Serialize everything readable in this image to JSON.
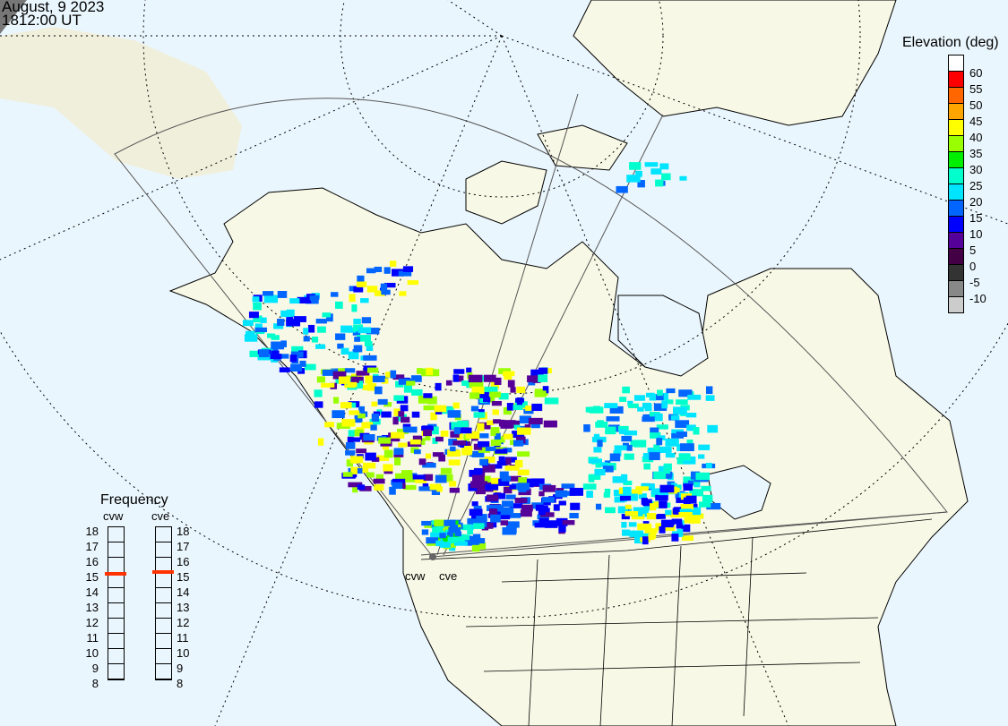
{
  "header": {
    "date": "August, 9 2023",
    "time": "1812:00 UT"
  },
  "elevation_legend": {
    "title": "Elevation (deg)",
    "labels": [
      "60",
      "55",
      "50",
      "45",
      "40",
      "35",
      "30",
      "25",
      "20",
      "15",
      "10",
      "5",
      "0",
      "-5",
      "-10"
    ],
    "colors": [
      "#ffffff",
      "#ff0000",
      "#ff6600",
      "#ffa500",
      "#ffff00",
      "#99ff00",
      "#00ee00",
      "#00ffcc",
      "#00e5ff",
      "#0066ff",
      "#0000ff",
      "#550099",
      "#440044",
      "#333333",
      "#888888",
      "#cccccc"
    ]
  },
  "frequency": {
    "title": "Frequency",
    "radars": [
      {
        "name": "cvw",
        "value_mhz": 14.9
      },
      {
        "name": "cve",
        "value_mhz": 15.0
      }
    ],
    "ticks": [
      "18",
      "17",
      "16",
      "15",
      "14",
      "13",
      "12",
      "11",
      "10",
      "9",
      "8"
    ],
    "marker_color": "#ff3300"
  },
  "map": {
    "site_labels": [
      "cvw",
      "cve"
    ],
    "land_color": "#f8f8e6",
    "ocean_color": "#eaf6fd"
  }
}
